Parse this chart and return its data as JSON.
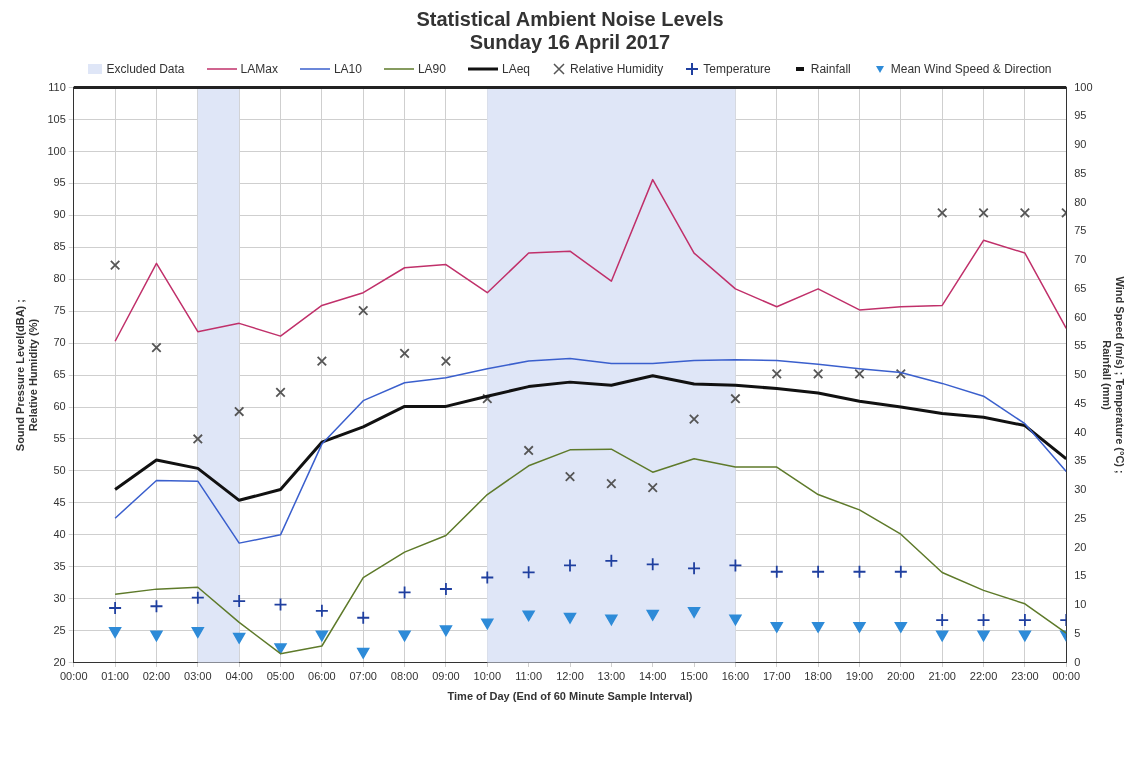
{
  "chart_data": {
    "type": "line",
    "title": "Statistical Ambient Noise Levels",
    "subtitle": "Sunday 16 April 2017",
    "xlabel": "Time of Day (End of 60 Minute Sample Interval)",
    "ylabel": "Sound Pressure Level(dBA) ;\nRelative Humidity (%)",
    "y2label": "Wind Speed (m/s) ; Temperature (°C) ;\nRainfall (mm)",
    "x": [
      1,
      2,
      3,
      4,
      5,
      6,
      7,
      8,
      9,
      10,
      11,
      12,
      13,
      14,
      15,
      16,
      17,
      18,
      19,
      20,
      21,
      22,
      23,
      24
    ],
    "xlim": [
      0,
      24
    ],
    "xticks": [
      {
        "value": 0,
        "label": "00:00"
      },
      {
        "value": 1,
        "label": "01:00"
      },
      {
        "value": 2,
        "label": "02:00"
      },
      {
        "value": 3,
        "label": "03:00"
      },
      {
        "value": 4,
        "label": "04:00"
      },
      {
        "value": 5,
        "label": "05:00"
      },
      {
        "value": 6,
        "label": "06:00"
      },
      {
        "value": 7,
        "label": "07:00"
      },
      {
        "value": 8,
        "label": "08:00"
      },
      {
        "value": 9,
        "label": "09:00"
      },
      {
        "value": 10,
        "label": "10:00"
      },
      {
        "value": 11,
        "label": "11:00"
      },
      {
        "value": 12,
        "label": "12:00"
      },
      {
        "value": 13,
        "label": "13:00"
      },
      {
        "value": 14,
        "label": "14:00"
      },
      {
        "value": 15,
        "label": "15:00"
      },
      {
        "value": 16,
        "label": "16:00"
      },
      {
        "value": 17,
        "label": "17:00"
      },
      {
        "value": 18,
        "label": "18:00"
      },
      {
        "value": 19,
        "label": "19:00"
      },
      {
        "value": 20,
        "label": "20:00"
      },
      {
        "value": 21,
        "label": "21:00"
      },
      {
        "value": 22,
        "label": "22:00"
      },
      {
        "value": 23,
        "label": "23:00"
      },
      {
        "value": 24,
        "label": "00:00"
      }
    ],
    "ylim": [
      20,
      110
    ],
    "yticks": [
      20,
      25,
      30,
      35,
      40,
      45,
      50,
      55,
      60,
      65,
      70,
      75,
      80,
      85,
      90,
      95,
      100,
      105,
      110
    ],
    "y2lim": [
      0,
      100
    ],
    "y2ticks": [
      0,
      5,
      10,
      15,
      20,
      25,
      30,
      35,
      40,
      45,
      50,
      55,
      60,
      65,
      70,
      75,
      80,
      85,
      90,
      95,
      100
    ],
    "grid": true,
    "legend": "top",
    "bands": [
      {
        "axis": "x",
        "from": 3,
        "to": 4,
        "label": "Excluded Data",
        "color": "#dfe6f7"
      },
      {
        "axis": "x",
        "from": 10,
        "to": 16,
        "color": "#dfe6f7"
      }
    ],
    "series": [
      {
        "name": "LAMax",
        "marker": "none",
        "color": "#c0306a",
        "values": [
          70.3,
          82.5,
          71.8,
          73.1,
          71.1,
          75.9,
          77.9,
          81.8,
          82.3,
          77.9,
          84.1,
          84.4,
          79.7,
          95.6,
          84.1,
          78.5,
          75.7,
          78.5,
          75.2,
          75.7,
          75.9,
          86.1,
          84.1,
          72.3
        ]
      },
      {
        "name": "LA10",
        "marker": "none",
        "color": "#3a5fcd",
        "values": [
          42.6,
          48.5,
          48.4,
          38.7,
          40.0,
          54.2,
          61.0,
          63.8,
          64.6,
          66.0,
          67.2,
          67.6,
          66.8,
          66.8,
          67.3,
          67.4,
          67.3,
          66.7,
          66.0,
          65.4,
          63.7,
          61.7,
          57.4,
          49.9
        ]
      },
      {
        "name": "LA90",
        "marker": "none",
        "color": "#5e7a2a",
        "values": [
          30.7,
          31.5,
          31.8,
          26.3,
          21.4,
          22.6,
          33.3,
          37.3,
          39.9,
          46.3,
          50.8,
          53.3,
          53.4,
          49.8,
          51.9,
          50.6,
          50.6,
          46.3,
          43.9,
          40.1,
          34.1,
          31.3,
          29.2,
          24.6
        ]
      },
      {
        "name": "LAeq",
        "marker": "none",
        "color": "#111111",
        "values": [
          47.1,
          51.7,
          50.4,
          45.4,
          47.1,
          54.5,
          56.9,
          60.1,
          60.1,
          61.7,
          63.2,
          63.9,
          63.4,
          64.9,
          63.6,
          63.4,
          62.9,
          62.2,
          60.9,
          60.0,
          59.0,
          58.4,
          57.1,
          51.9
        ]
      },
      {
        "name": "Relative Humidity",
        "type": "scatter",
        "marker": "cross",
        "color": "#555555",
        "values": [
          82.2,
          69.3,
          55.0,
          59.3,
          62.3,
          67.2,
          75.1,
          68.4,
          67.2,
          61.3,
          53.2,
          49.1,
          48.0,
          47.4,
          58.1,
          61.3,
          65.2,
          65.2,
          65.2,
          65.2,
          90.4,
          90.4,
          90.4,
          90.4
        ]
      },
      {
        "name": "Temperature",
        "type": "scatter",
        "axis": "y2",
        "marker": "cross",
        "color": "#1f3f9f",
        "values": [
          9.5,
          9.8,
          11.3,
          10.7,
          10.1,
          9.0,
          7.8,
          12.2,
          12.8,
          14.8,
          15.7,
          16.9,
          17.7,
          17.1,
          16.4,
          16.9,
          15.8,
          15.8,
          15.8,
          15.8,
          7.4,
          7.4,
          7.4,
          7.4
        ]
      },
      {
        "name": "Rainfall",
        "type": "scatter",
        "axis": "y2",
        "marker": "square",
        "color": "#111111",
        "values": [
          null,
          null,
          null,
          null,
          null,
          null,
          null,
          null,
          null,
          null,
          null,
          null,
          null,
          null,
          null,
          null,
          null,
          null,
          null,
          null,
          null,
          null,
          null,
          null
        ]
      },
      {
        "name": "Mean Wind Speed & Direction",
        "type": "scatter",
        "axis": "y2",
        "marker": "triangle",
        "color": "#2e8bd8",
        "values": [
          5.5,
          4.9,
          5.5,
          4.5,
          2.7,
          4.9,
          1.9,
          4.9,
          5.8,
          7.0,
          8.4,
          8.0,
          7.7,
          8.5,
          9.0,
          7.7,
          6.4,
          6.4,
          6.4,
          6.4,
          4.9,
          4.9,
          4.9,
          4.9
        ]
      }
    ]
  }
}
